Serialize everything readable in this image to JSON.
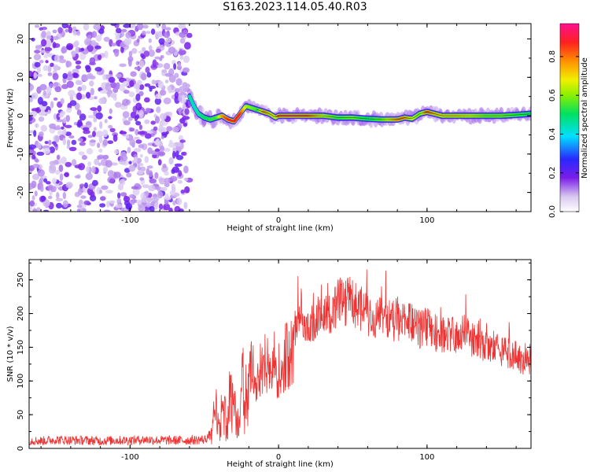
{
  "figure": {
    "title": "S163.2023.114.05.40.R03"
  },
  "chart_data": [
    {
      "type": "heatmap",
      "xlabel": "Height of straight line (km)",
      "ylabel": "Frequency (Hz)",
      "xlim": [
        -168,
        170
      ],
      "ylim": [
        -25,
        24
      ],
      "x_ticks": [
        "-100",
        "0",
        "100"
      ],
      "x_tick_values": [
        -100,
        0,
        100
      ],
      "y_ticks": [
        "20",
        "10",
        "0",
        "-10",
        "-20"
      ],
      "y_tick_values": [
        20,
        10,
        0,
        -10,
        -20
      ],
      "colorbar": {
        "label": "Normalized spectral amplitude",
        "ticks": [
          "0.0",
          "0.2",
          "0.4",
          "0.6",
          "0.8"
        ],
        "tick_values": [
          0.0,
          0.2,
          0.4,
          0.6,
          0.8
        ],
        "range": [
          0,
          0.97
        ]
      },
      "noise_region_x": [
        -168,
        -60
      ],
      "ridge": {
        "x": [
          -60,
          -57,
          -54,
          -50,
          -46,
          -42,
          -38,
          -34,
          -30,
          -26,
          -22,
          -18,
          -14,
          -10,
          -6,
          -2,
          0,
          10,
          20,
          30,
          40,
          50,
          60,
          70,
          80,
          85,
          90,
          95,
          100,
          105,
          110,
          120,
          130,
          140,
          150,
          160,
          170
        ],
        "freq": [
          5,
          2.5,
          0.5,
          -0.5,
          -1,
          -0.5,
          0,
          -1,
          -1.5,
          0.5,
          2.5,
          2,
          1.5,
          1,
          0.5,
          -0.5,
          0,
          0,
          0,
          0,
          -0.5,
          -0.5,
          -0.8,
          -1,
          -1,
          -0.5,
          -0.8,
          0.5,
          1,
          0.5,
          0,
          0,
          0,
          0,
          0,
          0.2,
          0.5
        ],
        "amplitude": [
          0.3,
          0.2,
          0.3,
          0.45,
          0.55,
          0.55,
          0.8,
          0.9,
          0.9,
          0.9,
          0.65,
          0.6,
          0.55,
          0.85,
          0.75,
          0.7,
          0.9,
          0.95,
          0.9,
          0.7,
          0.55,
          0.6,
          0.5,
          0.6,
          0.85,
          0.85,
          0.7,
          0.6,
          0.9,
          0.8,
          0.75,
          0.75,
          0.7,
          0.6,
          0.6,
          0.55,
          0.5
        ]
      }
    },
    {
      "type": "line",
      "xlabel": "Height of straight line (km)",
      "ylabel": "SNR (10 * v/v)",
      "xlim": [
        -168,
        170
      ],
      "ylim": [
        0,
        280
      ],
      "x_ticks": [
        "-100",
        "0",
        "100"
      ],
      "x_tick_values": [
        -100,
        0,
        100
      ],
      "y_ticks": [
        "0",
        "50",
        "100",
        "150",
        "200",
        "250"
      ],
      "y_tick_values": [
        0,
        50,
        100,
        150,
        200,
        250
      ],
      "color": "#ee3333",
      "series": [
        {
          "x": [
            -168,
            -160,
            -150,
            -140,
            -130,
            -120,
            -110,
            -100,
            -90,
            -80,
            -70,
            -60,
            -50,
            -46,
            -44,
            -42,
            -40,
            -38,
            -35,
            -32,
            -30,
            -27,
            -24,
            -21,
            -18,
            -15,
            -12,
            -9,
            -6,
            -3,
            0,
            5,
            10,
            15,
            20,
            25,
            30,
            35,
            40,
            45,
            48,
            52,
            56,
            60,
            65,
            70,
            75,
            80,
            85,
            90,
            95,
            100,
            105,
            110,
            115,
            120,
            125,
            130,
            135,
            140,
            145,
            150,
            155,
            160,
            165,
            170
          ],
          "values": [
            12,
            11,
            13,
            12,
            12,
            11,
            12,
            12,
            13,
            12,
            12,
            12,
            13,
            20,
            60,
            90,
            40,
            110,
            60,
            130,
            95,
            70,
            160,
            110,
            190,
            120,
            165,
            180,
            150,
            175,
            160,
            190,
            195,
            240,
            205,
            225,
            230,
            230,
            255,
            250,
            262,
            240,
            240,
            230,
            225,
            230,
            220,
            220,
            220,
            215,
            205,
            210,
            200,
            195,
            200,
            190,
            200,
            185,
            185,
            175,
            175,
            165,
            165,
            160,
            150,
            150
          ]
        }
      ]
    }
  ]
}
